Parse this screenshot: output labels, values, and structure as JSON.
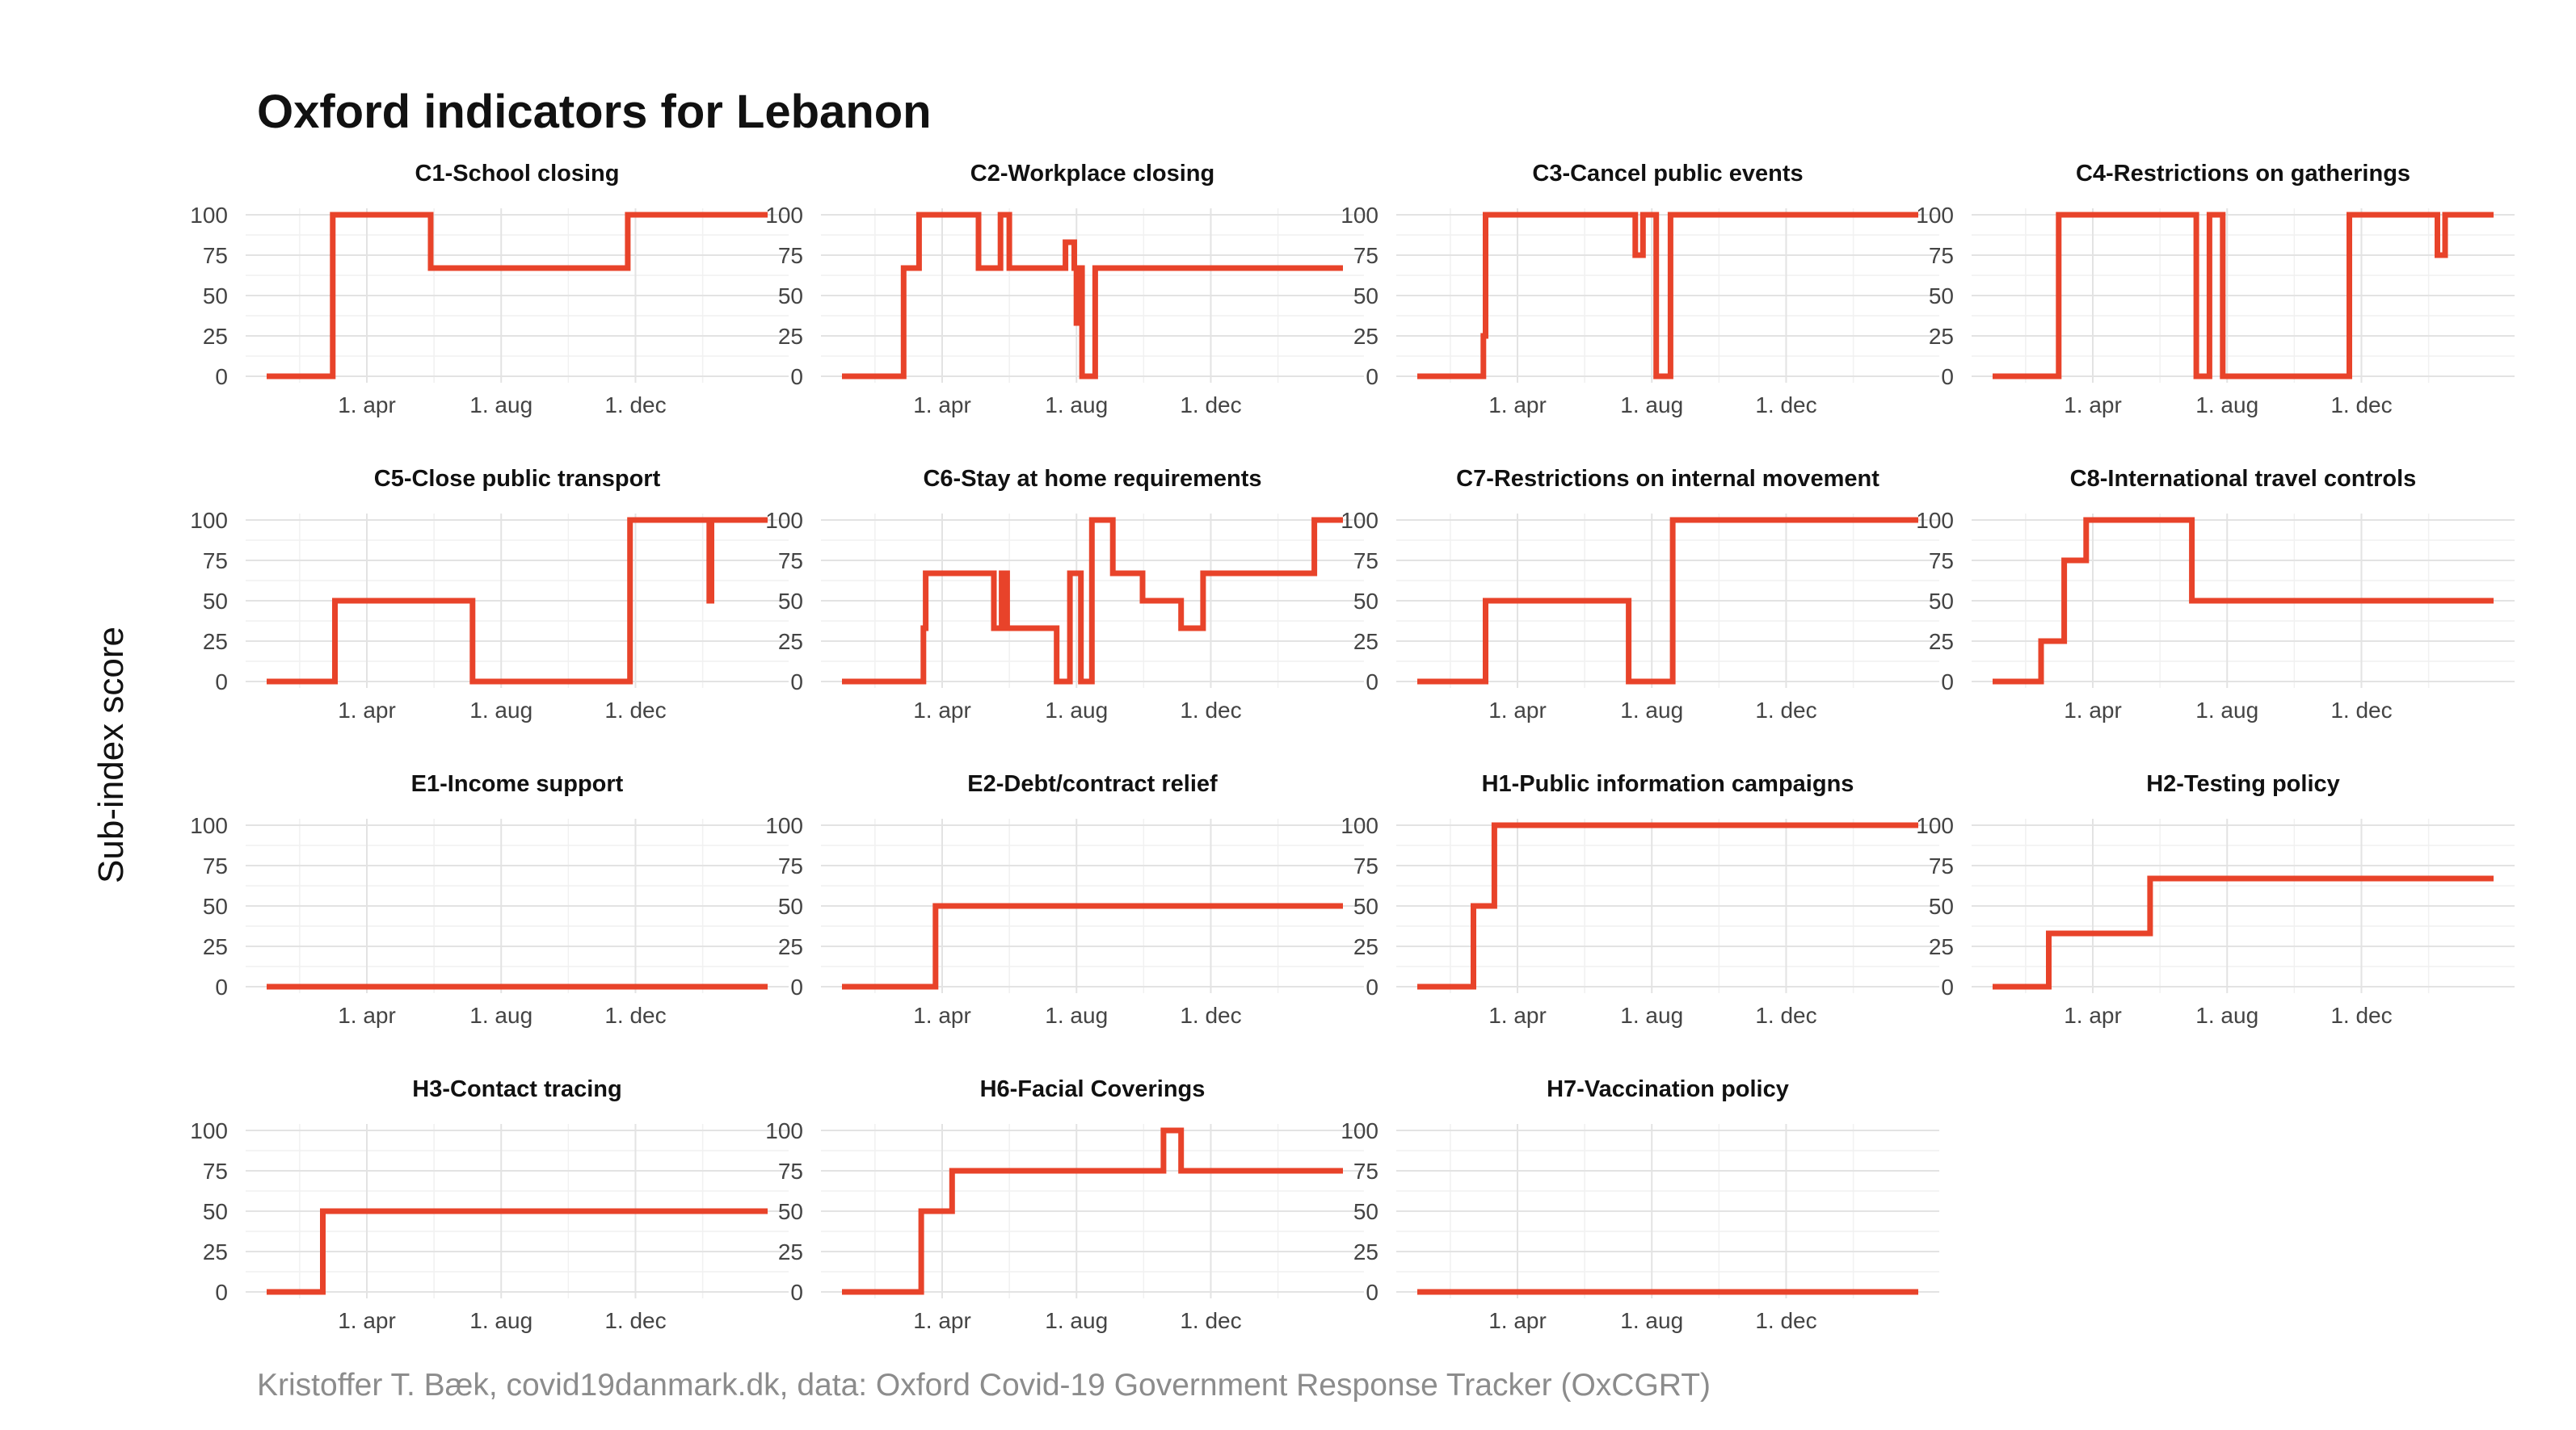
{
  "title": "Oxford indicators for Lebanon",
  "ylabel": "Sub-index score",
  "caption": "Kristoffer T. Bæk, covid19danmark.dk, data: Oxford Covid-19 Government Response Tracker (OxCGRT)",
  "colors": {
    "line": "#e8432a",
    "grid": "#e3e3e3",
    "text": "#111111",
    "caption": "#8c8c8c"
  },
  "chart_data": {
    "type": "line",
    "layout": "facet-grid-4x4",
    "x_unit": "date",
    "x_range": [
      "2020-01-01",
      "2021-03-31"
    ],
    "y_range": [
      0,
      100
    ],
    "y_ticks": [
      0,
      25,
      50,
      75,
      100
    ],
    "x_ticks": [
      {
        "date": "2020-04-01",
        "label": "1. apr"
      },
      {
        "date": "2020-08-01",
        "label": "1. aug"
      },
      {
        "date": "2020-12-01",
        "label": "1. dec"
      }
    ],
    "grid": true,
    "panels": [
      {
        "title": "C1-School closing",
        "points": [
          [
            "2020-01-01",
            0
          ],
          [
            "2020-03-01",
            0
          ],
          [
            "2020-03-01",
            100
          ],
          [
            "2020-05-29",
            100
          ],
          [
            "2020-05-29",
            67
          ],
          [
            "2020-11-24",
            67
          ],
          [
            "2020-11-24",
            100
          ],
          [
            "2021-03-31",
            100
          ]
        ]
      },
      {
        "title": "C2-Workplace closing",
        "points": [
          [
            "2020-01-01",
            0
          ],
          [
            "2020-02-26",
            0
          ],
          [
            "2020-02-26",
            67
          ],
          [
            "2020-03-11",
            67
          ],
          [
            "2020-03-11",
            100
          ],
          [
            "2020-05-04",
            100
          ],
          [
            "2020-05-04",
            67
          ],
          [
            "2020-05-24",
            67
          ],
          [
            "2020-05-24",
            100
          ],
          [
            "2020-06-01",
            100
          ],
          [
            "2020-06-01",
            67
          ],
          [
            "2020-07-22",
            67
          ],
          [
            "2020-07-22",
            83
          ],
          [
            "2020-07-30",
            83
          ],
          [
            "2020-07-30",
            67
          ],
          [
            "2020-08-01",
            67
          ],
          [
            "2020-08-01",
            33
          ],
          [
            "2020-08-03",
            33
          ],
          [
            "2020-08-03",
            67
          ],
          [
            "2020-08-06",
            67
          ],
          [
            "2020-08-06",
            0
          ],
          [
            "2020-08-18",
            0
          ],
          [
            "2020-08-18",
            67
          ],
          [
            "2021-03-31",
            67
          ]
        ]
      },
      {
        "title": "C3-Cancel public events",
        "points": [
          [
            "2020-01-01",
            0
          ],
          [
            "2020-03-01",
            0
          ],
          [
            "2020-03-01",
            25
          ],
          [
            "2020-03-03",
            25
          ],
          [
            "2020-03-03",
            100
          ],
          [
            "2020-07-17",
            100
          ],
          [
            "2020-07-17",
            75
          ],
          [
            "2020-07-24",
            75
          ],
          [
            "2020-07-24",
            100
          ],
          [
            "2020-08-05",
            100
          ],
          [
            "2020-08-05",
            0
          ],
          [
            "2020-08-18",
            0
          ],
          [
            "2020-08-18",
            100
          ],
          [
            "2021-03-31",
            100
          ]
        ]
      },
      {
        "title": "C4-Restrictions on gatherings",
        "points": [
          [
            "2020-01-01",
            0
          ],
          [
            "2020-03-01",
            0
          ],
          [
            "2020-03-01",
            100
          ],
          [
            "2020-07-04",
            100
          ],
          [
            "2020-07-04",
            0
          ],
          [
            "2020-07-16",
            0
          ],
          [
            "2020-07-16",
            100
          ],
          [
            "2020-07-28",
            100
          ],
          [
            "2020-07-28",
            0
          ],
          [
            "2020-11-20",
            0
          ],
          [
            "2020-11-20",
            100
          ],
          [
            "2021-02-08",
            100
          ],
          [
            "2021-02-08",
            75
          ],
          [
            "2021-02-15",
            75
          ],
          [
            "2021-02-15",
            100
          ],
          [
            "2021-03-31",
            100
          ]
        ]
      },
      {
        "title": "C5-Close public transport",
        "points": [
          [
            "2020-01-01",
            0
          ],
          [
            "2020-03-03",
            0
          ],
          [
            "2020-03-03",
            50
          ],
          [
            "2020-07-06",
            50
          ],
          [
            "2020-07-06",
            0
          ],
          [
            "2020-11-26",
            0
          ],
          [
            "2020-11-26",
            100
          ],
          [
            "2021-02-06",
            100
          ],
          [
            "2021-02-06",
            50
          ],
          [
            "2021-02-08",
            50
          ],
          [
            "2021-02-08",
            100
          ],
          [
            "2021-03-31",
            100
          ]
        ]
      },
      {
        "title": "C6-Stay at home requirements",
        "points": [
          [
            "2020-01-01",
            0
          ],
          [
            "2020-03-15",
            0
          ],
          [
            "2020-03-15",
            33
          ],
          [
            "2020-03-17",
            33
          ],
          [
            "2020-03-17",
            67
          ],
          [
            "2020-05-18",
            67
          ],
          [
            "2020-05-18",
            33
          ],
          [
            "2020-05-25",
            33
          ],
          [
            "2020-05-25",
            67
          ],
          [
            "2020-05-30",
            67
          ],
          [
            "2020-05-30",
            33
          ],
          [
            "2020-07-14",
            33
          ],
          [
            "2020-07-14",
            0
          ],
          [
            "2020-07-26",
            0
          ],
          [
            "2020-07-26",
            67
          ],
          [
            "2020-08-05",
            67
          ],
          [
            "2020-08-05",
            0
          ],
          [
            "2020-08-15",
            0
          ],
          [
            "2020-08-15",
            100
          ],
          [
            "2020-09-03",
            100
          ],
          [
            "2020-09-03",
            67
          ],
          [
            "2020-09-30",
            67
          ],
          [
            "2020-09-30",
            50
          ],
          [
            "2020-11-04",
            50
          ],
          [
            "2020-11-04",
            33
          ],
          [
            "2020-11-24",
            33
          ],
          [
            "2020-11-24",
            67
          ],
          [
            "2021-03-05",
            67
          ],
          [
            "2021-03-05",
            100
          ],
          [
            "2021-03-31",
            100
          ]
        ]
      },
      {
        "title": "C7-Restrictions on internal movement",
        "points": [
          [
            "2020-01-01",
            0
          ],
          [
            "2020-03-03",
            0
          ],
          [
            "2020-03-03",
            50
          ],
          [
            "2020-07-11",
            50
          ],
          [
            "2020-07-11",
            0
          ],
          [
            "2020-08-20",
            0
          ],
          [
            "2020-08-20",
            100
          ],
          [
            "2021-03-31",
            100
          ]
        ]
      },
      {
        "title": "C8-International travel controls",
        "points": [
          [
            "2020-01-01",
            0
          ],
          [
            "2020-02-14",
            0
          ],
          [
            "2020-02-14",
            25
          ],
          [
            "2020-03-06",
            25
          ],
          [
            "2020-03-06",
            75
          ],
          [
            "2020-03-26",
            75
          ],
          [
            "2020-03-26",
            100
          ],
          [
            "2020-06-30",
            100
          ],
          [
            "2020-06-30",
            50
          ],
          [
            "2021-03-31",
            50
          ]
        ]
      },
      {
        "title": "E1-Income support",
        "points": [
          [
            "2020-01-01",
            0
          ],
          [
            "2021-03-31",
            0
          ]
        ]
      },
      {
        "title": "E2-Debt/contract relief",
        "points": [
          [
            "2020-01-01",
            0
          ],
          [
            "2020-03-26",
            0
          ],
          [
            "2020-03-26",
            50
          ],
          [
            "2021-03-31",
            50
          ]
        ]
      },
      {
        "title": "H1-Public information campaigns",
        "points": [
          [
            "2020-01-01",
            0
          ],
          [
            "2020-02-21",
            0
          ],
          [
            "2020-02-21",
            50
          ],
          [
            "2020-03-11",
            50
          ],
          [
            "2020-03-11",
            100
          ],
          [
            "2021-03-31",
            100
          ]
        ]
      },
      {
        "title": "H2-Testing policy",
        "points": [
          [
            "2020-01-01",
            0
          ],
          [
            "2020-02-21",
            0
          ],
          [
            "2020-02-21",
            33
          ],
          [
            "2020-05-23",
            33
          ],
          [
            "2020-05-23",
            67
          ],
          [
            "2021-03-31",
            67
          ]
        ]
      },
      {
        "title": "H3-Contact tracing",
        "points": [
          [
            "2020-01-01",
            0
          ],
          [
            "2020-02-21",
            0
          ],
          [
            "2020-02-21",
            50
          ],
          [
            "2021-03-31",
            50
          ]
        ]
      },
      {
        "title": "H6-Facial Coverings",
        "points": [
          [
            "2020-01-01",
            0
          ],
          [
            "2020-03-13",
            0
          ],
          [
            "2020-03-13",
            50
          ],
          [
            "2020-04-10",
            50
          ],
          [
            "2020-04-10",
            75
          ],
          [
            "2020-10-19",
            75
          ],
          [
            "2020-10-19",
            100
          ],
          [
            "2020-11-04",
            100
          ],
          [
            "2020-11-04",
            75
          ],
          [
            "2021-03-31",
            75
          ]
        ]
      },
      {
        "title": "H7-Vaccination policy",
        "points": [
          [
            "2020-01-01",
            0
          ],
          [
            "2021-03-31",
            0
          ]
        ]
      }
    ]
  }
}
